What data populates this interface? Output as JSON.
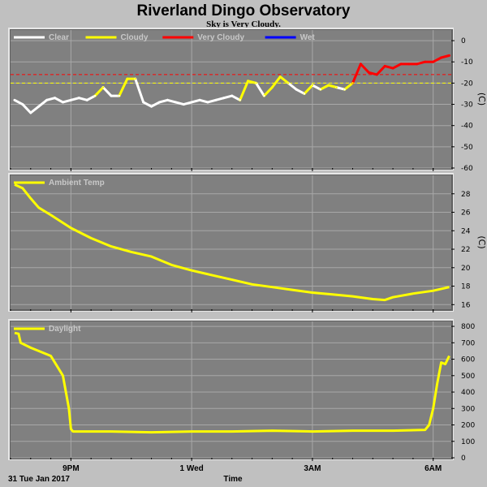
{
  "page": {
    "title": "Riverland Dingo Observatory",
    "subtitle": "Sky is Very Cloudy.",
    "date_label": "31 Tue Jan 2017",
    "x_axis_label": "Time"
  },
  "colors": {
    "background": "#c0c0c0",
    "plot_bg": "#808080",
    "grid": "#a8a8a8",
    "clear": "#ffffff",
    "cloudy": "#ffff00",
    "very_cloudy": "#ff0000",
    "wet": "#0000ff",
    "threshold_cloudy": "#ffff00",
    "threshold_very_cloudy": "#ff0000"
  },
  "chart_data": [
    {
      "type": "line",
      "name": "sky-temperature",
      "unit": "(C)",
      "ylim": [
        -60,
        5
      ],
      "yticks": [
        0,
        -10,
        -20,
        -30,
        -40,
        -50,
        -60
      ],
      "xlim": [
        19.5,
        30.45
      ],
      "xticks": [
        {
          "x": 21,
          "label": "9PM"
        },
        {
          "x": 24,
          "label": "1 Wed"
        },
        {
          "x": 27,
          "label": "3AM"
        },
        {
          "x": 30,
          "label": "6AM"
        }
      ],
      "grid": true,
      "legend_position": "top-left",
      "legend": [
        {
          "label": "Clear",
          "color": "#ffffff"
        },
        {
          "label": "Cloudy",
          "color": "#ffff00"
        },
        {
          "label": "Very Cloudy",
          "color": "#ff0000"
        },
        {
          "label": "Wet",
          "color": "#0000ff"
        }
      ],
      "thresholds": [
        {
          "value": -16,
          "color": "#ff0000"
        },
        {
          "value": -20,
          "color": "#ffff00"
        }
      ],
      "x": [
        19.6,
        19.8,
        20.0,
        20.2,
        20.4,
        20.6,
        20.8,
        21.0,
        21.2,
        21.4,
        21.6,
        21.8,
        22.0,
        22.2,
        22.4,
        22.6,
        22.8,
        23.0,
        23.2,
        23.4,
        23.6,
        23.8,
        24.0,
        24.2,
        24.4,
        24.6,
        24.8,
        25.0,
        25.2,
        25.4,
        25.6,
        25.8,
        26.0,
        26.2,
        26.4,
        26.6,
        26.8,
        27.0,
        27.2,
        27.4,
        27.6,
        27.8,
        28.0,
        28.2,
        28.4,
        28.6,
        28.8,
        29.0,
        29.2,
        29.4,
        29.6,
        29.8,
        30.0,
        30.2,
        30.4
      ],
      "y": [
        -28,
        -30,
        -34,
        -31,
        -28,
        -27,
        -29,
        -28,
        -27,
        -28,
        -26,
        -22,
        -26,
        -26,
        -18,
        -18,
        -29,
        -31,
        -29,
        -28,
        -29,
        -30,
        -29,
        -28,
        -29,
        -28,
        -27,
        -26,
        -28,
        -19,
        -20,
        -26,
        -22,
        -17,
        -20,
        -23,
        -25,
        -21,
        -23,
        -21,
        -22,
        -23,
        -20,
        -11,
        -15,
        -16,
        -12,
        -13,
        -11,
        -11,
        -11,
        -10,
        -10,
        -8,
        -7
      ],
      "condition": [
        "clear",
        "clear",
        "clear",
        "clear",
        "clear",
        "clear",
        "clear",
        "clear",
        "clear",
        "clear",
        "clear",
        "cloudy",
        "clear",
        "clear",
        "cloudy",
        "cloudy",
        "clear",
        "clear",
        "clear",
        "clear",
        "clear",
        "clear",
        "clear",
        "clear",
        "clear",
        "clear",
        "clear",
        "clear",
        "clear",
        "cloudy",
        "cloudy",
        "clear",
        "cloudy",
        "cloudy",
        "cloudy",
        "clear",
        "clear",
        "cloudy",
        "clear",
        "cloudy",
        "cloudy",
        "clear",
        "cloudy",
        "very_cloudy",
        "very_cloudy",
        "very_cloudy",
        "very_cloudy",
        "very_cloudy",
        "very_cloudy",
        "very_cloudy",
        "very_cloudy",
        "very_cloudy",
        "very_cloudy",
        "very_cloudy",
        "very_cloudy"
      ]
    },
    {
      "type": "line",
      "name": "ambient-temperature",
      "unit": "(C)",
      "ylim": [
        15.5,
        30
      ],
      "yticks": [
        16,
        18,
        20,
        22,
        24,
        26,
        28
      ],
      "xlim": [
        19.5,
        30.45
      ],
      "xticks": [
        {
          "x": 21,
          "label": "9PM"
        },
        {
          "x": 24,
          "label": "1 Wed"
        },
        {
          "x": 27,
          "label": "3AM"
        },
        {
          "x": 30,
          "label": "6AM"
        }
      ],
      "grid": true,
      "legend_position": "top-left",
      "legend": [
        {
          "label": "Ambient Temp",
          "color": "#ffff00"
        }
      ],
      "x": [
        19.6,
        19.8,
        20.0,
        20.2,
        20.5,
        21.0,
        21.5,
        22.0,
        22.5,
        23.0,
        23.5,
        24.0,
        24.5,
        25.0,
        25.5,
        26.0,
        26.5,
        27.0,
        27.5,
        28.0,
        28.5,
        28.8,
        29.0,
        29.5,
        30.0,
        30.4
      ],
      "y": [
        29.0,
        28.6,
        27.5,
        26.5,
        25.7,
        24.3,
        23.2,
        22.3,
        21.7,
        21.2,
        20.3,
        19.7,
        19.2,
        18.7,
        18.2,
        17.9,
        17.6,
        17.3,
        17.1,
        16.9,
        16.6,
        16.5,
        16.8,
        17.2,
        17.5,
        17.9
      ]
    },
    {
      "type": "line",
      "name": "daylight",
      "unit": "",
      "ylim": [
        0,
        830
      ],
      "yticks": [
        0,
        100,
        200,
        300,
        400,
        500,
        600,
        700,
        800
      ],
      "xlim": [
        19.5,
        30.45
      ],
      "xticks": [
        {
          "x": 21,
          "label": "9PM"
        },
        {
          "x": 24,
          "label": "1 Wed"
        },
        {
          "x": 27,
          "label": "3AM"
        },
        {
          "x": 30,
          "label": "6AM"
        }
      ],
      "grid": true,
      "legend_position": "top-left",
      "legend": [
        {
          "label": "Daylight",
          "color": "#ffff00"
        }
      ],
      "x": [
        19.6,
        19.7,
        19.75,
        20.0,
        20.5,
        20.8,
        20.95,
        21.0,
        21.05,
        21.5,
        22.0,
        23.0,
        24.0,
        25.0,
        26.0,
        27.0,
        28.0,
        29.0,
        29.8,
        29.9,
        30.0,
        30.1,
        30.2,
        30.3,
        30.4
      ],
      "y": [
        760,
        755,
        700,
        670,
        620,
        500,
        300,
        175,
        160,
        160,
        160,
        155,
        160,
        160,
        165,
        160,
        165,
        165,
        170,
        200,
        300,
        450,
        580,
        570,
        620
      ]
    }
  ]
}
